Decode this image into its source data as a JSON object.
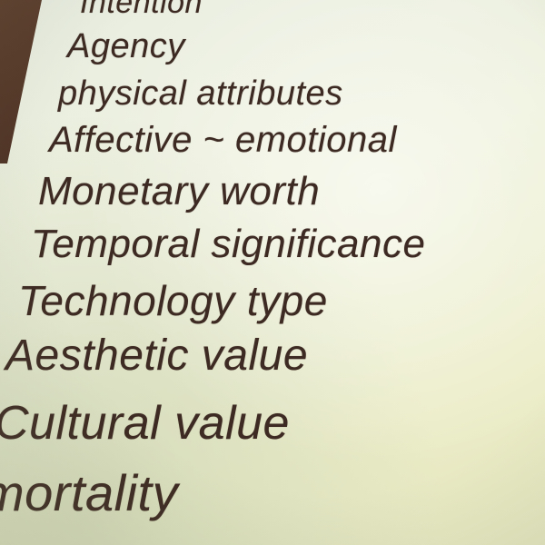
{
  "slide": {
    "lines": [
      "Intention",
      "Agency",
      "physical attributes",
      "Affective ~ emotional",
      "Monetary worth",
      "Temporal significance",
      "Technology type",
      "Aesthetic value",
      "Cultural value",
      "mortality"
    ]
  },
  "colors": {
    "text": "#3d2a22",
    "background": "#ecedc8",
    "edge": "#5a3a2a"
  }
}
